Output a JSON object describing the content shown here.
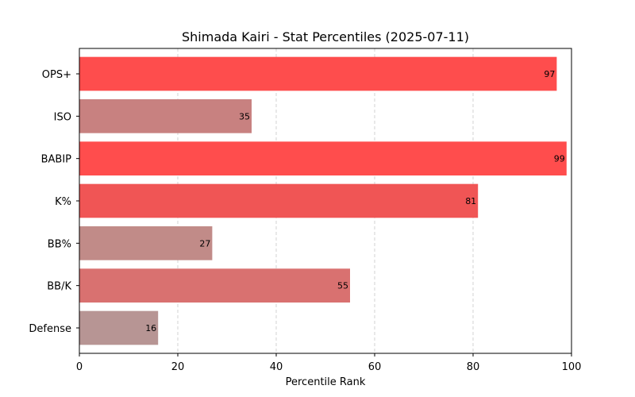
{
  "chart_data": {
    "type": "bar",
    "orientation": "horizontal",
    "title": "Shimada Kairi - Stat Percentiles (2025-07-11)",
    "xlabel": "Percentile Rank",
    "ylabel": "",
    "xlim": [
      0,
      100
    ],
    "xticks": [
      0,
      20,
      40,
      60,
      80,
      100
    ],
    "grid": "x-dashed",
    "categories": [
      "OPS+",
      "ISO",
      "BABIP",
      "K%",
      "BB%",
      "BB/K",
      "Defense"
    ],
    "values": [
      97,
      35,
      99,
      81,
      27,
      55,
      16
    ],
    "colors": [
      "#fe4d4d",
      "#c88180",
      "#ff4d4d",
      "#f05555",
      "#c18b88",
      "#d97170",
      "#b79594"
    ]
  }
}
